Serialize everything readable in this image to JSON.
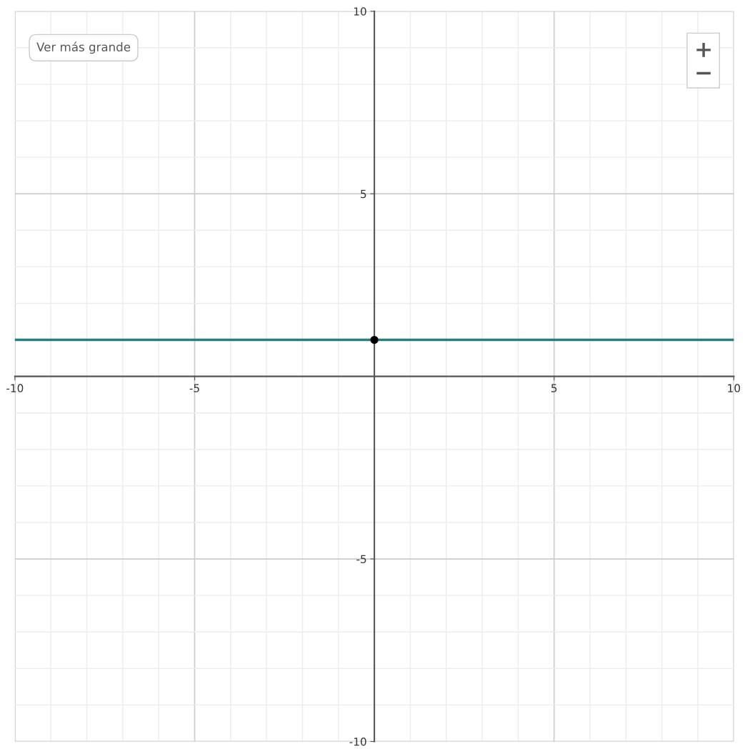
{
  "chart_data": {
    "type": "line",
    "xlim": [
      -10,
      10
    ],
    "ylim": [
      -10,
      10
    ],
    "xticks": [
      -10,
      -5,
      5,
      10
    ],
    "yticks": [
      -10,
      -5,
      5,
      10
    ],
    "grid": true,
    "line_style": "solid",
    "annotations": [
      "Ver más grande"
    ],
    "series": [
      {
        "color": "#2a7d80",
        "marker": "none",
        "x": [
          -10,
          10
        ],
        "values": [
          1,
          1
        ]
      },
      {
        "type": "scatter",
        "marker": "circle",
        "color": "#000000",
        "x": [
          0
        ],
        "values": [
          1
        ]
      }
    ]
  }
}
